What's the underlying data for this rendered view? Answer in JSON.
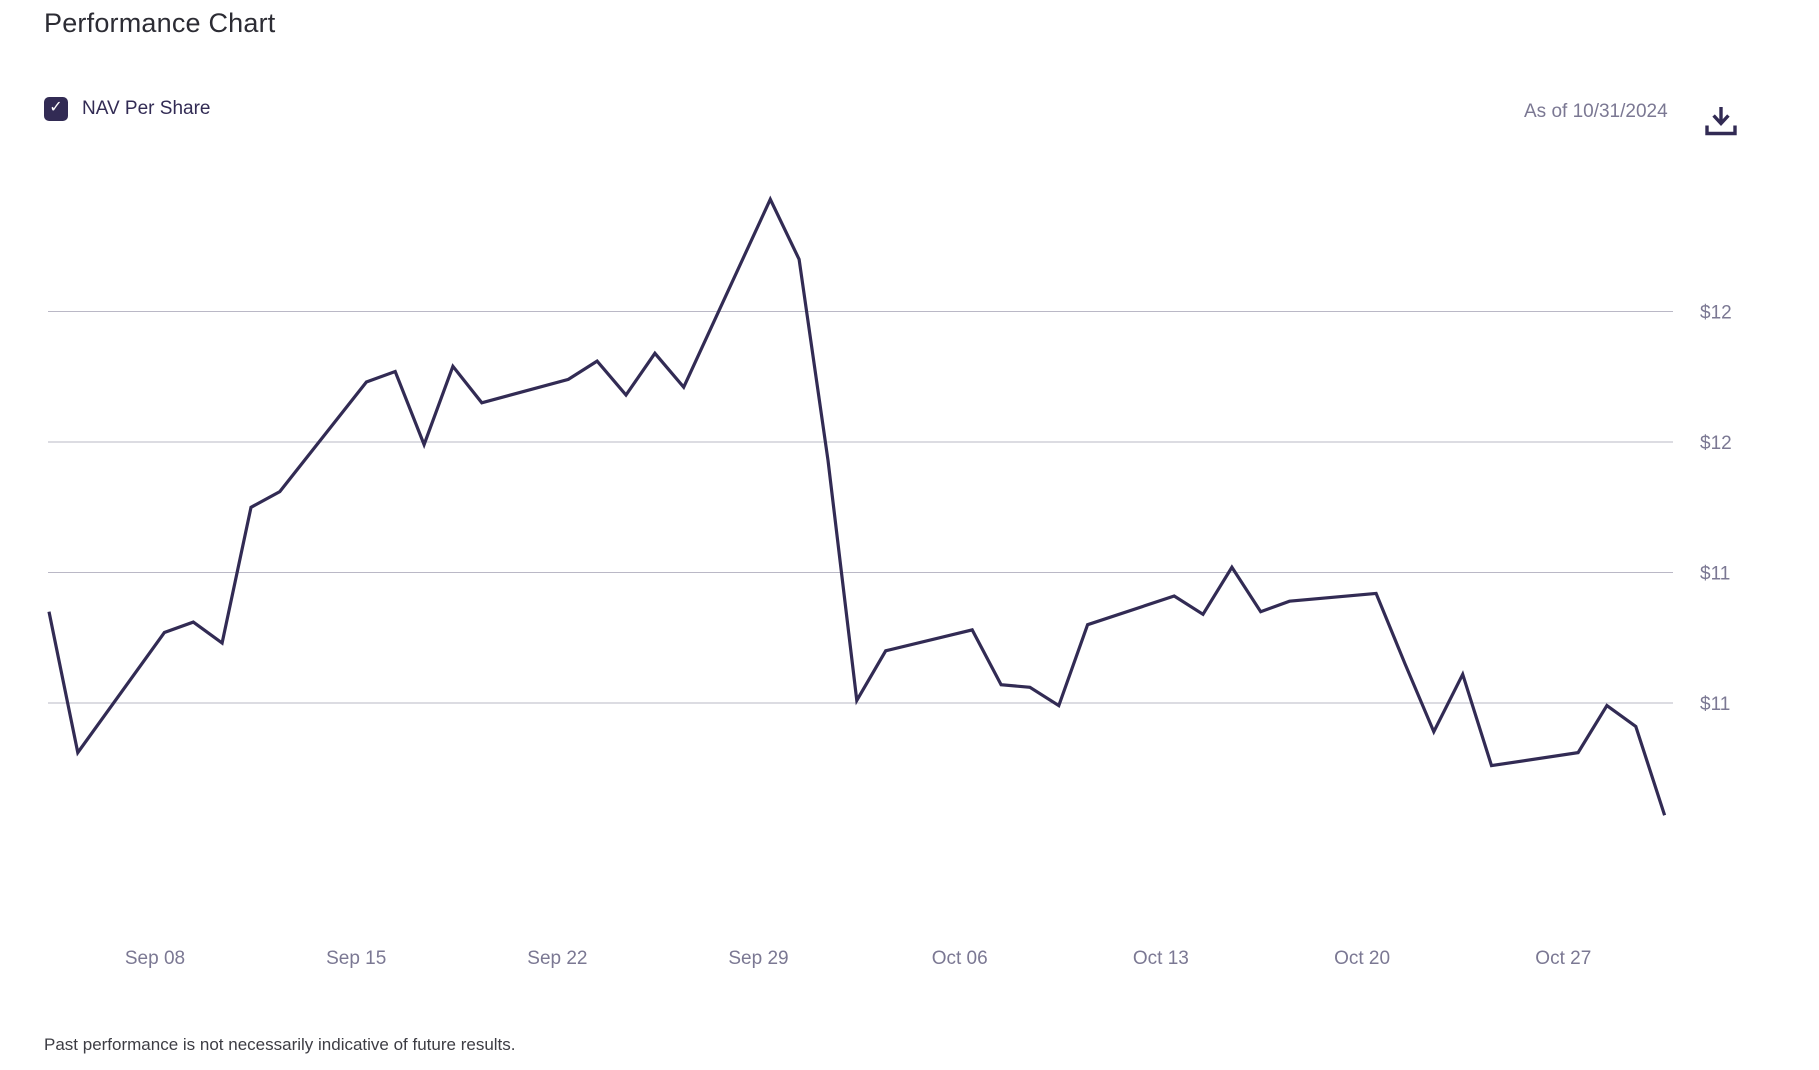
{
  "header": {
    "title": "Performance Chart"
  },
  "legend": {
    "label": "NAV Per Share",
    "checked": true
  },
  "icons": {
    "checkmark": "✓",
    "download": "download-icon"
  },
  "meta": {
    "as_of": "As of 10/31/2024"
  },
  "footer": {
    "disclaimer": "Past performance is not necessarily indicative of future results."
  },
  "colors": {
    "line": "#322b54",
    "accent": "#322b54",
    "axis_text": "#7b7893",
    "gridline": "#bab8c6",
    "title_text": "#2c2c34",
    "footer_text": "#3d3d44"
  },
  "chart_data": {
    "type": "line",
    "title": "Performance Chart",
    "grid": "horizontal",
    "legend_position": "top-left",
    "ylim": [
      10.0,
      12.5
    ],
    "y_axis": {
      "ticks": [
        {
          "label": "$12",
          "value": 12.0
        },
        {
          "label": "$12",
          "value": 11.5
        },
        {
          "label": "$11",
          "value": 11.0
        },
        {
          "label": "$11",
          "value": 10.5
        }
      ]
    },
    "x_axis": {
      "ticks": [
        {
          "label": "Sep 08",
          "day_index": 3
        },
        {
          "label": "Sep 15",
          "day_index": 10
        },
        {
          "label": "Sep 22",
          "day_index": 17
        },
        {
          "label": "Sep 29",
          "day_index": 24
        },
        {
          "label": "Oct 06",
          "day_index": 31
        },
        {
          "label": "Oct 13",
          "day_index": 38
        },
        {
          "label": "Oct 20",
          "day_index": 45
        },
        {
          "label": "Oct 27",
          "day_index": 52
        }
      ]
    },
    "series": [
      {
        "name": "NAV Per Share",
        "color": "#322b54",
        "points": [
          {
            "date": "Sep 05",
            "day_index": 0,
            "value": 10.85
          },
          {
            "date": "Sep 06",
            "day_index": 1,
            "value": 10.31
          },
          {
            "date": "Sep 09",
            "day_index": 4,
            "value": 10.77
          },
          {
            "date": "Sep 10",
            "day_index": 5,
            "value": 10.81
          },
          {
            "date": "Sep 11",
            "day_index": 6,
            "value": 10.73
          },
          {
            "date": "Sep 12",
            "day_index": 7,
            "value": 11.25
          },
          {
            "date": "Sep 13",
            "day_index": 8,
            "value": 11.31
          },
          {
            "date": "Sep 16",
            "day_index": 11,
            "value": 11.73
          },
          {
            "date": "Sep 17",
            "day_index": 12,
            "value": 11.77
          },
          {
            "date": "Sep 18",
            "day_index": 13,
            "value": 11.49
          },
          {
            "date": "Sep 19",
            "day_index": 14,
            "value": 11.79
          },
          {
            "date": "Sep 20",
            "day_index": 15,
            "value": 11.65
          },
          {
            "date": "Sep 23",
            "day_index": 18,
            "value": 11.74
          },
          {
            "date": "Sep 24",
            "day_index": 19,
            "value": 11.81
          },
          {
            "date": "Sep 25",
            "day_index": 20,
            "value": 11.68
          },
          {
            "date": "Sep 26",
            "day_index": 21,
            "value": 11.84
          },
          {
            "date": "Sep 27",
            "day_index": 22,
            "value": 11.71
          },
          {
            "date": "Sep 30",
            "day_index": 25,
            "value": 12.43
          },
          {
            "date": "Oct 01",
            "day_index": 26,
            "value": 12.2
          },
          {
            "date": "Oct 02",
            "day_index": 27,
            "value": 11.43
          },
          {
            "date": "Oct 03",
            "day_index": 28,
            "value": 10.51
          },
          {
            "date": "Oct 04",
            "day_index": 29,
            "value": 10.7
          },
          {
            "date": "Oct 07",
            "day_index": 32,
            "value": 10.78
          },
          {
            "date": "Oct 08",
            "day_index": 33,
            "value": 10.57
          },
          {
            "date": "Oct 09",
            "day_index": 34,
            "value": 10.56
          },
          {
            "date": "Oct 10",
            "day_index": 35,
            "value": 10.49
          },
          {
            "date": "Oct 11",
            "day_index": 36,
            "value": 10.8
          },
          {
            "date": "Oct 14",
            "day_index": 39,
            "value": 10.91
          },
          {
            "date": "Oct 15",
            "day_index": 40,
            "value": 10.84
          },
          {
            "date": "Oct 16",
            "day_index": 41,
            "value": 11.02
          },
          {
            "date": "Oct 17",
            "day_index": 42,
            "value": 10.85
          },
          {
            "date": "Oct 18",
            "day_index": 43,
            "value": 10.89
          },
          {
            "date": "Oct 21",
            "day_index": 46,
            "value": 10.92
          },
          {
            "date": "Oct 22",
            "day_index": 47,
            "value": 10.65
          },
          {
            "date": "Oct 23",
            "day_index": 48,
            "value": 10.39
          },
          {
            "date": "Oct 24",
            "day_index": 49,
            "value": 10.61
          },
          {
            "date": "Oct 25",
            "day_index": 50,
            "value": 10.26
          },
          {
            "date": "Oct 28",
            "day_index": 53,
            "value": 10.31
          },
          {
            "date": "Oct 29",
            "day_index": 54,
            "value": 10.49
          },
          {
            "date": "Oct 30",
            "day_index": 55,
            "value": 10.41
          },
          {
            "date": "Oct 31",
            "day_index": 56,
            "value": 10.07
          }
        ]
      }
    ]
  }
}
